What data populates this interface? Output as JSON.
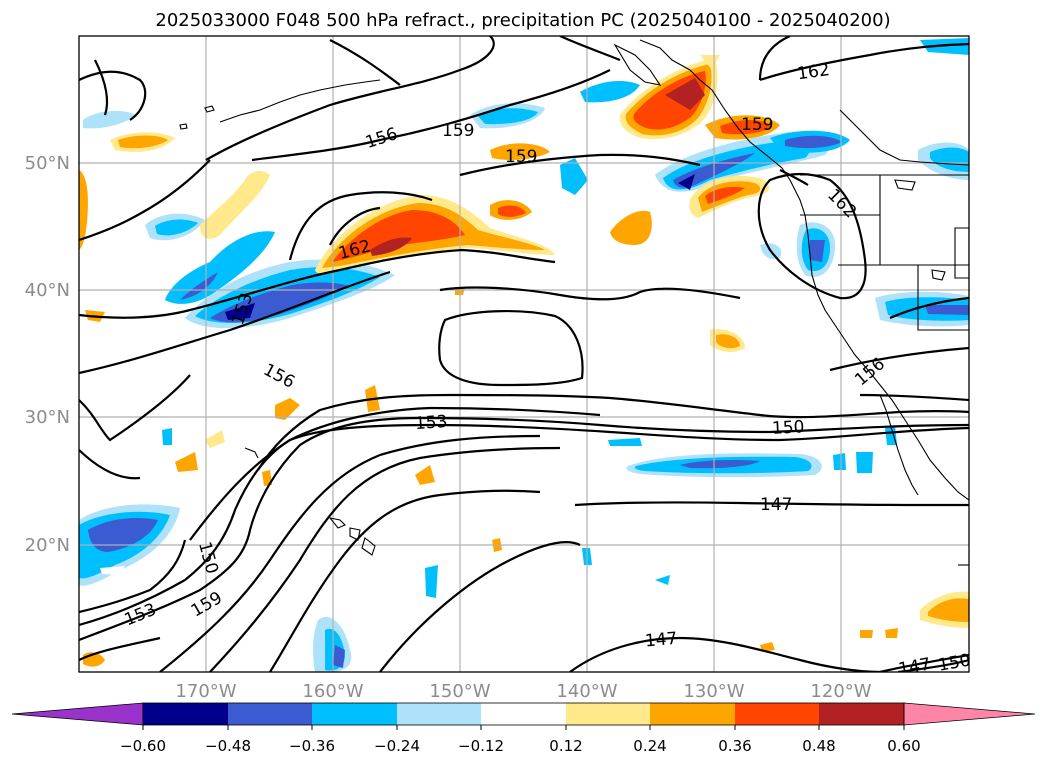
{
  "title": "2025033000 F048 500 hPa refract., precipitation PC (2025040100 - 2025040200)",
  "colors": {
    "c_lt_-0.60": "#9933cc",
    "c_-0.60_-0.48": "#00008b",
    "c_-0.48_-0.36": "#3a5bd1",
    "c_-0.36_-0.24": "#00bfff",
    "c_-0.24_-0.12": "#aee2fa",
    "c_-0.12_0.12": "#ffffff",
    "c_0.12_0.24": "#ffe98a",
    "c_0.24_0.36": "#ffa500",
    "c_0.36_0.48": "#ff4500",
    "c_0.48_0.60": "#b22222",
    "c_gt_0.60": "#ff85a8"
  },
  "axes": {
    "x_ticks": [
      "170°W",
      "160°W",
      "150°W",
      "140°W",
      "130°W",
      "120°W"
    ],
    "y_ticks": [
      "50°N",
      "40°N",
      "30°N",
      "20°N"
    ],
    "lon_range": [
      -180,
      -110
    ],
    "lat_range": [
      10,
      60
    ]
  },
  "colorbar": {
    "ticks": [
      "−0.60",
      "−0.48",
      "−0.36",
      "−0.24",
      "−0.12",
      "0.12",
      "0.24",
      "0.36",
      "0.48",
      "0.60"
    ],
    "extend": "both"
  },
  "contour_labels": [
    {
      "text": "156"
    },
    {
      "text": "159"
    },
    {
      "text": "159"
    },
    {
      "text": "162"
    },
    {
      "text": "162"
    },
    {
      "text": "159"
    },
    {
      "text": "162"
    },
    {
      "text": "153"
    },
    {
      "text": "156"
    },
    {
      "text": "153"
    },
    {
      "text": "150"
    },
    {
      "text": "147"
    },
    {
      "text": "150"
    },
    {
      "text": "153"
    },
    {
      "text": "159"
    },
    {
      "text": "147"
    },
    {
      "text": "147"
    },
    {
      "text": "150"
    },
    {
      "text": "156"
    }
  ]
}
